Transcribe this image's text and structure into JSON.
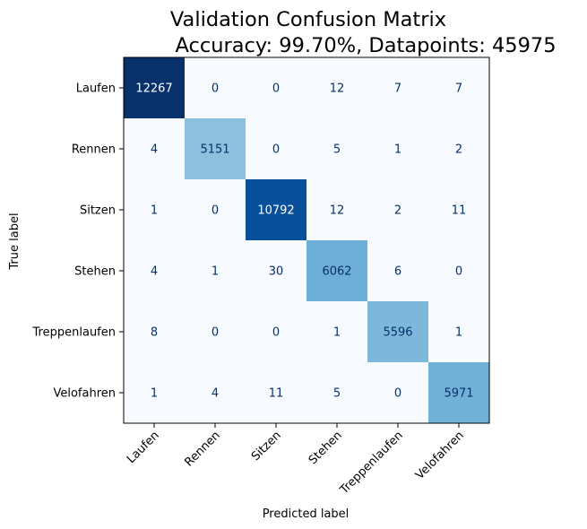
{
  "chart_data": {
    "type": "heatmap",
    "title": "Validation Confusion Matrix",
    "subtitle": "Accuracy: 99.70%, Datapoints: 45975",
    "xlabel": "Predicted label",
    "ylabel": "True label",
    "x_categories": [
      "Laufen",
      "Rennen",
      "Sitzen",
      "Stehen",
      "Treppenlaufen",
      "Velofahren"
    ],
    "y_categories": [
      "Laufen",
      "Rennen",
      "Sitzen",
      "Stehen",
      "Treppenlaufen",
      "Velofahren"
    ],
    "values": [
      [
        12267,
        0,
        0,
        12,
        7,
        7
      ],
      [
        4,
        5151,
        0,
        5,
        1,
        2
      ],
      [
        1,
        0,
        10792,
        12,
        2,
        11
      ],
      [
        4,
        1,
        30,
        6062,
        6,
        0
      ],
      [
        8,
        0,
        0,
        1,
        5596,
        1
      ],
      [
        1,
        4,
        11,
        5,
        0,
        5971
      ]
    ],
    "vmin": 0,
    "vmax": 12267,
    "colormap": "Blues",
    "colorbar": false,
    "x_tick_rotation": 45,
    "colors": {
      "low": "#f7fbff",
      "high": "#08306b",
      "text_dark": "#08306b",
      "text_light": "#ffffff"
    }
  }
}
